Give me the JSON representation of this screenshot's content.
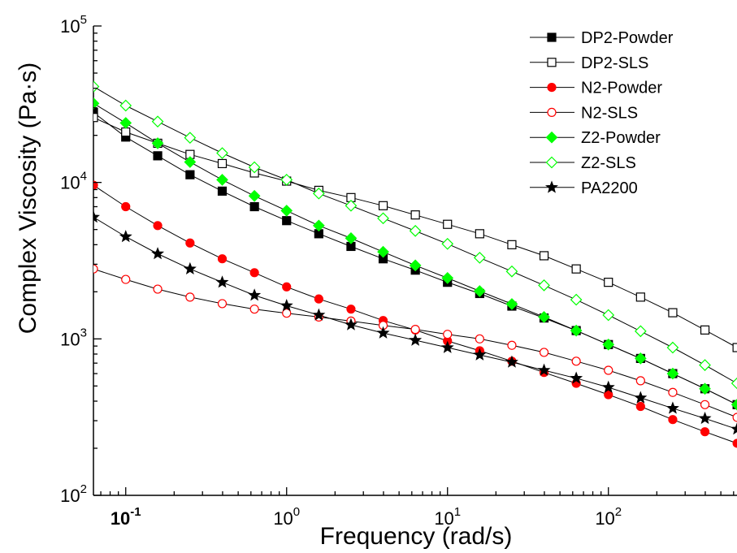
{
  "chart_data": {
    "type": "scatter",
    "xlabel": "Frequency (rad/s)",
    "ylabel": "Complex Viscosity (Pa·s)",
    "xscale": "log",
    "yscale": "log",
    "xlim": [
      0.063,
      630
    ],
    "ylim": [
      100,
      100000
    ],
    "x_ticks": [
      {
        "value": 0.1,
        "base": "10",
        "exp": "-1",
        "bold": true
      },
      {
        "value": 1,
        "base": "10",
        "exp": "0",
        "bold": false
      },
      {
        "value": 10,
        "base": "10",
        "exp": "1",
        "bold": false
      },
      {
        "value": 100,
        "base": "10",
        "exp": "2",
        "bold": false
      }
    ],
    "y_ticks": [
      {
        "value": 100,
        "base": "10",
        "exp": "2"
      },
      {
        "value": 1000,
        "base": "10",
        "exp": "3"
      },
      {
        "value": 10000,
        "base": "10",
        "exp": "4"
      },
      {
        "value": 100000,
        "base": "10",
        "exp": "5"
      }
    ],
    "grid": false,
    "legend_position": "top-right",
    "x": [
      0.063,
      0.1,
      0.158,
      0.251,
      0.398,
      0.631,
      1.0,
      1.585,
      2.512,
      3.981,
      6.31,
      10,
      15.85,
      25.12,
      39.81,
      63.1,
      100,
      158.5,
      251.2,
      398.1,
      631
    ],
    "series": [
      {
        "name": "DP2-Powder",
        "marker": "square",
        "filled": true,
        "color": "#000000",
        "values": [
          28000,
          19500,
          14800,
          11200,
          8800,
          7000,
          5700,
          4700,
          3900,
          3250,
          2750,
          2300,
          1950,
          1620,
          1360,
          1130,
          920,
          750,
          600,
          480,
          380
        ]
      },
      {
        "name": "DP2-SLS",
        "marker": "square",
        "filled": false,
        "color": "#000000",
        "values": [
          26000,
          21000,
          17800,
          15100,
          13200,
          11500,
          10200,
          8900,
          8000,
          7100,
          6200,
          5400,
          4700,
          4000,
          3400,
          2800,
          2300,
          1850,
          1470,
          1140,
          880
        ]
      },
      {
        "name": "N2-Powder",
        "marker": "circle",
        "filled": true,
        "color": "#ff0000",
        "values": [
          9600,
          7000,
          5300,
          4100,
          3250,
          2650,
          2150,
          1800,
          1550,
          1310,
          1140,
          970,
          840,
          720,
          610,
          520,
          440,
          370,
          305,
          255,
          215
        ]
      },
      {
        "name": "N2-SLS",
        "marker": "circle",
        "filled": false,
        "color": "#ff0000",
        "values": [
          2800,
          2400,
          2080,
          1850,
          1680,
          1550,
          1460,
          1380,
          1300,
          1220,
          1150,
          1070,
          1000,
          910,
          820,
          720,
          630,
          540,
          455,
          380,
          315
        ]
      },
      {
        "name": "Z2-Powder",
        "marker": "diamond",
        "filled": true,
        "color": "#00ff00",
        "values": [
          32000,
          24000,
          17800,
          13500,
          10400,
          8200,
          6600,
          5300,
          4400,
          3600,
          2950,
          2450,
          2020,
          1670,
          1380,
          1130,
          920,
          750,
          600,
          480,
          380
        ]
      },
      {
        "name": "Z2-SLS",
        "marker": "diamond",
        "filled": false,
        "color": "#00ff00",
        "values": [
          41000,
          31000,
          24500,
          19300,
          15400,
          12500,
          10400,
          8500,
          7100,
          5900,
          4900,
          4050,
          3300,
          2700,
          2200,
          1780,
          1420,
          1120,
          880,
          680,
          520
        ]
      },
      {
        "name": "PA2200",
        "marker": "star",
        "filled": true,
        "color": "#000000",
        "values": [
          6000,
          4500,
          3500,
          2800,
          2300,
          1900,
          1630,
          1420,
          1230,
          1090,
          980,
          880,
          790,
          710,
          630,
          560,
          490,
          420,
          360,
          310,
          265
        ]
      }
    ]
  }
}
